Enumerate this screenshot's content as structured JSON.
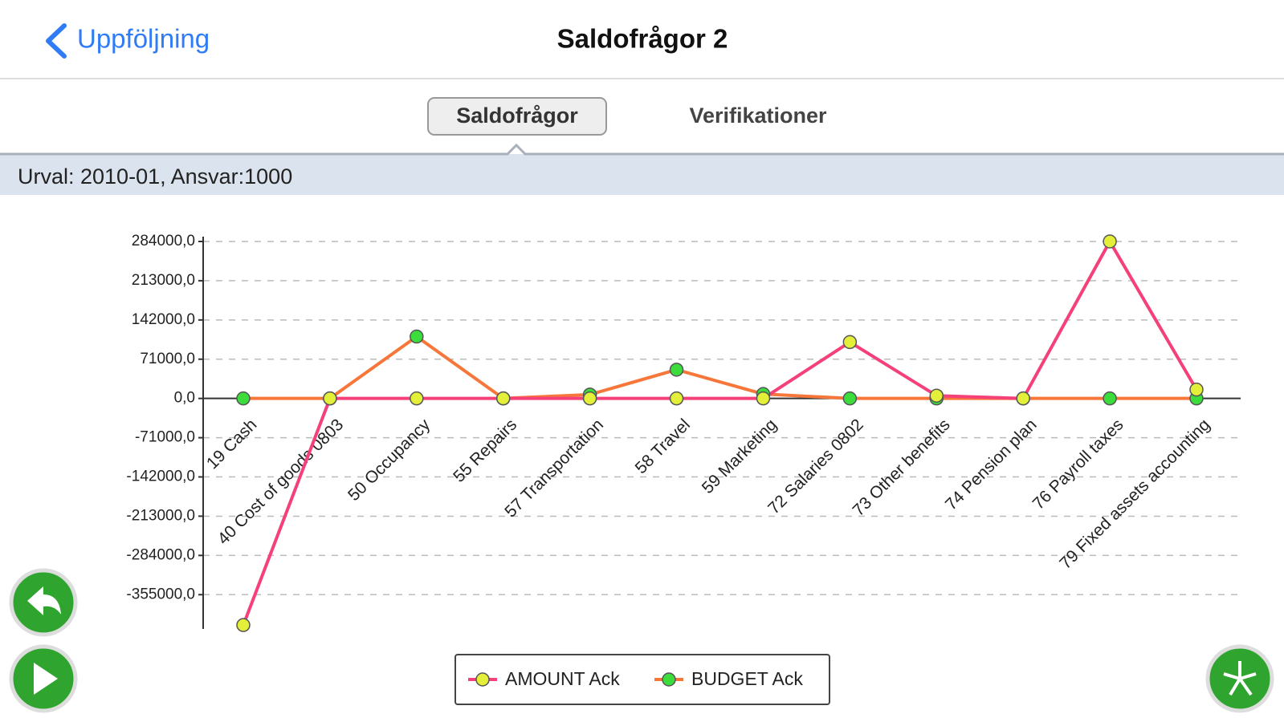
{
  "header": {
    "back": "Uppföljning",
    "title": "Saldofrågor 2"
  },
  "tabs": [
    "Saldofrågor",
    "Verifikationer"
  ],
  "selection": "Urval: 2010-01, Ansvar:1000",
  "chart_data": {
    "type": "line",
    "categories": [
      "19 Cash",
      "40 Cost of goods 0803",
      "50 Occupancy",
      "55 Repairs",
      "57 Transportation",
      "58 Travel",
      "59 Marketing",
      "72 Salaries 0802",
      "73 Other benefits",
      "74 Pension plan",
      "76 Payroll taxes",
      "79 Fixed assets accounting"
    ],
    "series": [
      {
        "name": "AMOUNT Ack",
        "color": "#f5407a",
        "marker_color": "#e4ef3a",
        "values": [
          -410000,
          0,
          0,
          0,
          0,
          0,
          0,
          102000,
          5000,
          0,
          284000,
          16000
        ]
      },
      {
        "name": "BUDGET Ack",
        "color": "#f7773a",
        "marker_color": "#3bdc3b",
        "values": [
          0,
          0,
          112000,
          0,
          7000,
          52000,
          8000,
          0,
          0,
          0,
          0,
          0
        ]
      }
    ],
    "ylim": [
      -417000,
      284000
    ],
    "yticks": [
      {
        "value": 284000,
        "label": "284000,0"
      },
      {
        "value": 213000,
        "label": "213000,0"
      },
      {
        "value": 142000,
        "label": "142000,0"
      },
      {
        "value": 71000,
        "label": "71000,0"
      },
      {
        "value": 0,
        "label": "0,0"
      },
      {
        "value": -71000,
        "label": "-71000,0"
      },
      {
        "value": -142000,
        "label": "-142000,0"
      },
      {
        "value": -213000,
        "label": "-213000,0"
      },
      {
        "value": -284000,
        "label": "-284000,0"
      },
      {
        "value": -355000,
        "label": "-355000,0"
      }
    ],
    "grid": true,
    "legend": "bottom"
  }
}
